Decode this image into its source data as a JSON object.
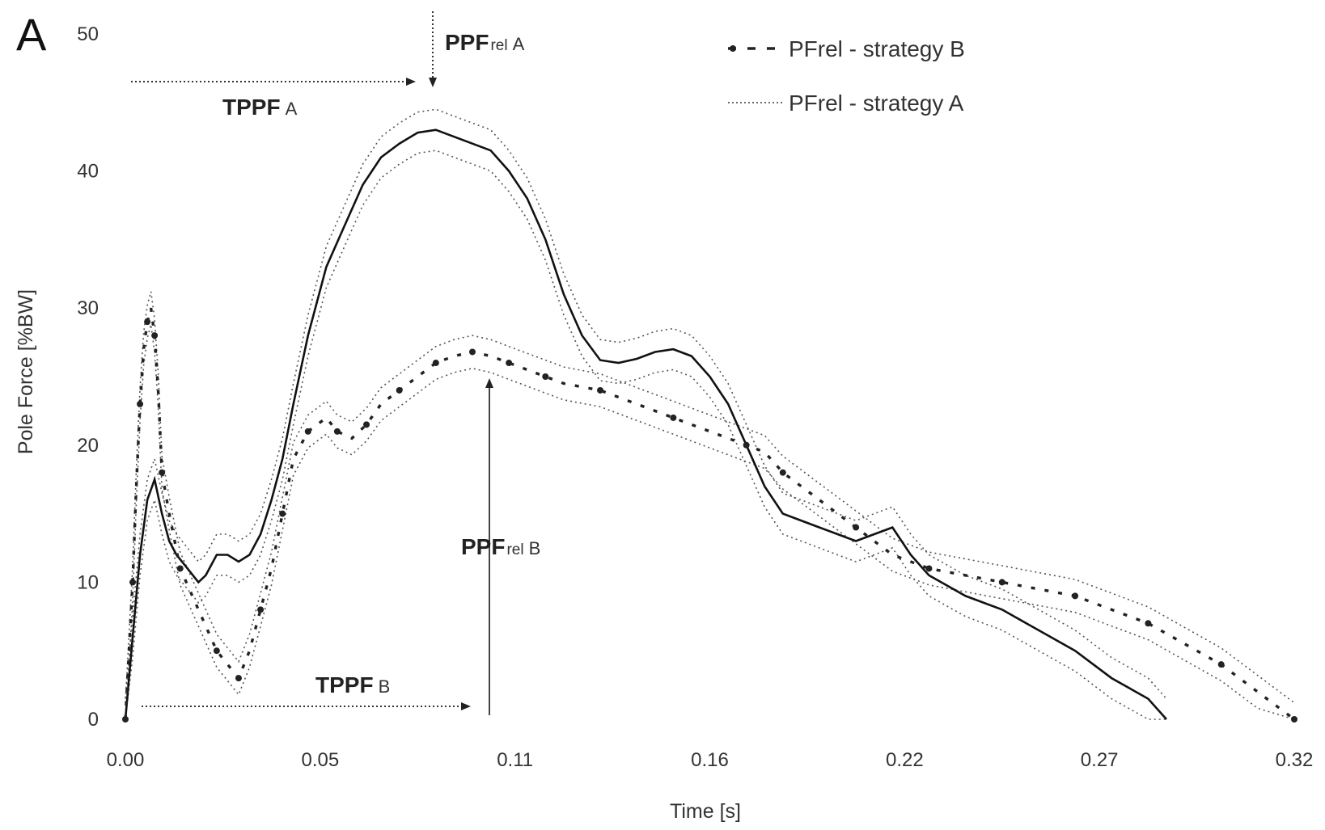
{
  "chart_data": {
    "type": "line",
    "panel_label": "A",
    "xlabel": "Time [s]",
    "ylabel": "Pole Force [%BW]",
    "xlim": [
      0.0,
      0.32
    ],
    "ylim": [
      0,
      50
    ],
    "x_ticks": [
      "0.00",
      "0.05",
      "0.11",
      "0.16",
      "0.22",
      "0.27",
      "0.32"
    ],
    "y_ticks": [
      "0",
      "10",
      "20",
      "30",
      "40",
      "50"
    ],
    "legend": {
      "position": "top-right"
    },
    "series": [
      {
        "name": "PFrel - strategy B",
        "style": "dashed-markers",
        "color": "#222222",
        "x": [
          0.0,
          0.001,
          0.002,
          0.003,
          0.004,
          0.005,
          0.006,
          0.007,
          0.008,
          0.009,
          0.01,
          0.012,
          0.015,
          0.02,
          0.025,
          0.028,
          0.031,
          0.034,
          0.037,
          0.04,
          0.043,
          0.046,
          0.05,
          0.055,
          0.058,
          0.062,
          0.066,
          0.07,
          0.075,
          0.08,
          0.085,
          0.09,
          0.095,
          0.1,
          0.105,
          0.11,
          0.115,
          0.12,
          0.13,
          0.14,
          0.15,
          0.16,
          0.17,
          0.175,
          0.18,
          0.19,
          0.2,
          0.21,
          0.22,
          0.23,
          0.24,
          0.25,
          0.26,
          0.27,
          0.28,
          0.29,
          0.3,
          0.31,
          0.32
        ],
        "y": [
          0,
          5,
          10,
          17,
          23,
          27,
          29,
          30,
          28,
          24,
          18,
          15,
          11,
          8,
          5,
          4,
          3,
          5,
          8,
          11,
          15,
          19,
          21,
          22,
          21,
          20.5,
          21.5,
          23,
          24,
          25,
          26,
          26.5,
          26.8,
          26.5,
          26,
          25.5,
          25,
          24.5,
          24,
          23,
          22,
          21,
          20,
          19.5,
          18,
          16,
          14,
          12,
          11,
          10.5,
          10,
          9.5,
          9,
          8,
          7,
          5.5,
          4,
          2,
          0
        ]
      },
      {
        "name": "PFrel - strategy A",
        "style": "solid",
        "color": "#111111",
        "x": [
          0.0,
          0.002,
          0.004,
          0.006,
          0.008,
          0.01,
          0.012,
          0.014,
          0.017,
          0.02,
          0.022,
          0.025,
          0.028,
          0.031,
          0.034,
          0.037,
          0.04,
          0.043,
          0.046,
          0.05,
          0.055,
          0.06,
          0.065,
          0.07,
          0.075,
          0.08,
          0.085,
          0.09,
          0.095,
          0.1,
          0.105,
          0.11,
          0.115,
          0.12,
          0.125,
          0.13,
          0.135,
          0.14,
          0.145,
          0.15,
          0.155,
          0.16,
          0.165,
          0.17,
          0.175,
          0.18,
          0.185,
          0.19,
          0.195,
          0.2,
          0.205,
          0.21,
          0.215,
          0.22,
          0.23,
          0.24,
          0.25,
          0.26,
          0.27,
          0.28,
          0.285
        ],
        "y": [
          0,
          6,
          12,
          16,
          17.5,
          15,
          13,
          12,
          11,
          10,
          10.5,
          12,
          12,
          11.5,
          12,
          13.5,
          16,
          19,
          23,
          28,
          33,
          36,
          39,
          41,
          42,
          42.8,
          43,
          42.5,
          42,
          41.5,
          40,
          38,
          35,
          31,
          28,
          26.2,
          26,
          26.3,
          26.8,
          27,
          26.5,
          25,
          23,
          20,
          17,
          15,
          14.5,
          14,
          13.5,
          13,
          13.5,
          14,
          12,
          10.5,
          9,
          8,
          6.5,
          5,
          3,
          1.5,
          0
        ]
      }
    ],
    "band": {
      "style": "dotted",
      "color": "#555555"
    },
    "annotations": [
      {
        "id": "ppf_a",
        "main": "PPF",
        "sub": "rel",
        "suffix": "A",
        "x": 0.083,
        "y": 45
      },
      {
        "id": "tppf_a",
        "main": "TPPF",
        "suffix": "A"
      },
      {
        "id": "ppf_b",
        "main": "PPF",
        "sub": "rel",
        "suffix": "B",
        "x": 0.096,
        "y": 24.5
      },
      {
        "id": "tppf_b",
        "main": "TPPF",
        "suffix": "B"
      }
    ]
  }
}
